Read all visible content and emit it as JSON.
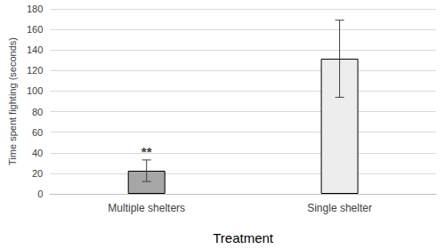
{
  "chart_data": {
    "type": "bar",
    "categories": [
      "Multiple shelters",
      "Single shelter"
    ],
    "values": [
      22.5,
      131.5
    ],
    "errors": [
      10.5,
      37.5
    ],
    "colors": [
      "#a6a6a6",
      "#ededed"
    ],
    "x_label": "Treatment",
    "y_label": "Time spent fighting (seconds)",
    "ylim": [
      0,
      180
    ],
    "yticks": [
      0,
      20,
      40,
      60,
      80,
      100,
      120,
      140,
      160,
      180
    ],
    "grid": true,
    "annotations": [
      {
        "category": "Multiple shelters",
        "text": "**"
      }
    ]
  }
}
